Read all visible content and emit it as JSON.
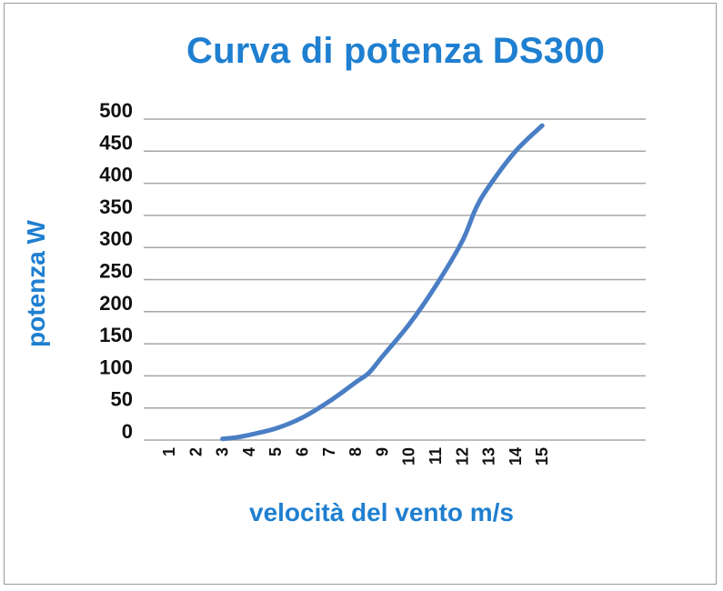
{
  "chart_data": {
    "type": "line",
    "title": "Curva di potenza DS300",
    "xlabel": "velocità del vento m/s",
    "ylabel": "potenza W",
    "x_ticks": [
      "1",
      "2",
      "3",
      "4",
      "5",
      "6",
      "7",
      "8",
      "9",
      "10",
      "11",
      "12",
      "13",
      "14",
      "15"
    ],
    "y_ticks": [
      "0",
      "50",
      "100",
      "150",
      "200",
      "250",
      "300",
      "350",
      "400",
      "450",
      "500"
    ],
    "ylim": [
      0,
      500
    ],
    "grid": true,
    "legend": "none",
    "series": [
      {
        "color": "#4a7ec4",
        "points": [
          [
            3,
            2
          ],
          [
            3.5,
            4
          ],
          [
            4,
            8
          ],
          [
            5,
            18
          ],
          [
            6,
            35
          ],
          [
            7,
            60
          ],
          [
            8,
            90
          ],
          [
            8.5,
            105
          ],
          [
            9,
            130
          ],
          [
            10,
            180
          ],
          [
            11,
            240
          ],
          [
            12,
            310
          ],
          [
            12.5,
            360
          ],
          [
            13,
            395
          ],
          [
            14,
            450
          ],
          [
            15,
            490
          ]
        ]
      }
    ]
  },
  "colors": {
    "title": "#1f7fd0",
    "line": "#4a7ec4",
    "grid": "#a6a6a6"
  }
}
